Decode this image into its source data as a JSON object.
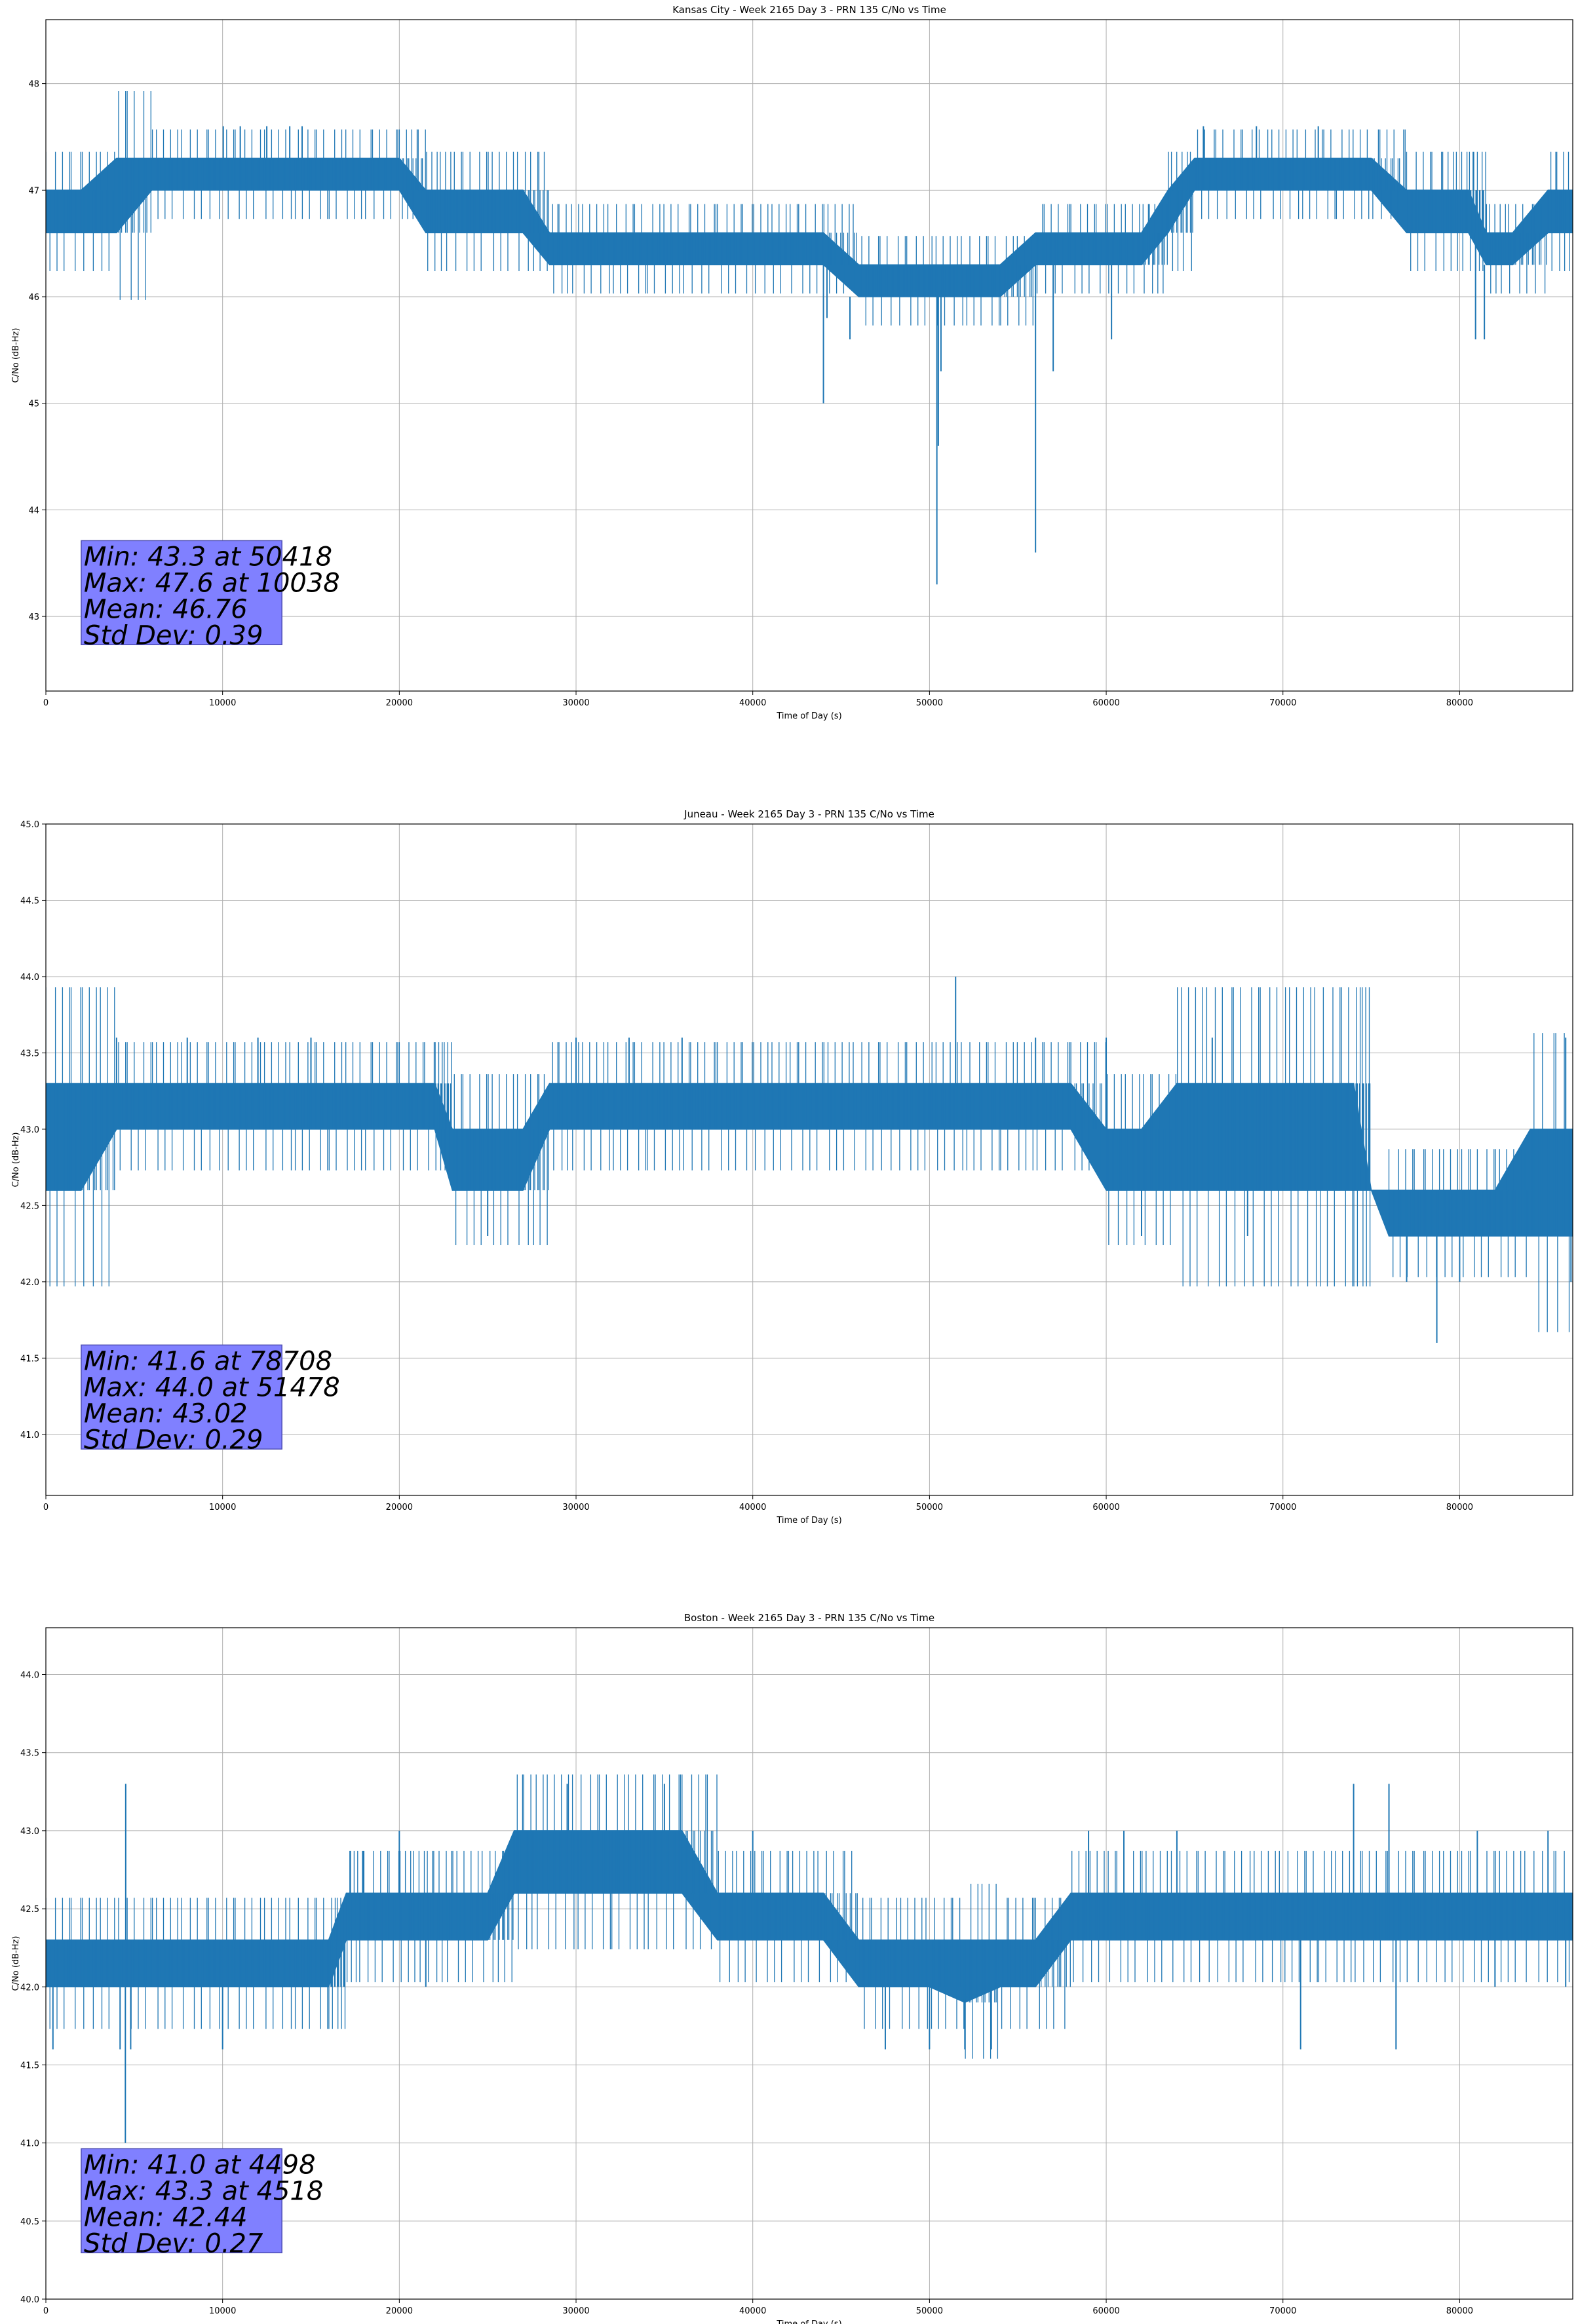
{
  "figure": {
    "colors": {
      "series": "#1f77b4",
      "grid": "#b0b0b0",
      "statbox_fill": "#8080ff",
      "statbox_edge": "#4d4db3"
    }
  },
  "chart_data": [
    {
      "type": "line",
      "title": "Kansas City - Week 2165 Day 3 - PRN 135 C/No vs Time",
      "xlabel": "Time of Day (s)",
      "ylabel": "C/No (dB-Hz)",
      "xlim": [
        0,
        86400
      ],
      "ylim": [
        42.3,
        48.6
      ],
      "xticks": [
        0,
        10000,
        20000,
        30000,
        40000,
        50000,
        60000,
        70000,
        80000
      ],
      "yticks": [
        43,
        44,
        45,
        46,
        47,
        48
      ],
      "ytick_labels": [
        "43",
        "44",
        "45",
        "46",
        "47",
        "48"
      ],
      "grid": true,
      "stats": [
        "Min: 43.3 at 50418",
        "Max: 47.6 at 10038",
        "Mean: 46.76",
        "Std Dev: 0.39"
      ],
      "series": [
        {
          "x": [
            0,
            2000,
            4000,
            6000,
            8000,
            10000,
            12000,
            14000,
            16000,
            18000,
            20000,
            21500,
            23000,
            25000,
            27000,
            28500,
            30000,
            32000,
            34000,
            36000,
            38000,
            40000,
            42000,
            44000,
            46000,
            48000,
            50000,
            52000,
            54000,
            56000,
            58000,
            60000,
            62000,
            63500,
            65000,
            67000,
            69000,
            71000,
            73000,
            75000,
            77000,
            79000,
            80500,
            81500,
            83000,
            85000,
            86400
          ],
          "y_low": [
            46.6,
            46.6,
            46.6,
            47.0,
            47.0,
            47.0,
            47.0,
            47.0,
            47.0,
            47.0,
            47.0,
            46.6,
            46.6,
            46.6,
            46.6,
            46.3,
            46.3,
            46.3,
            46.3,
            46.3,
            46.3,
            46.3,
            46.3,
            46.3,
            46.0,
            46.0,
            46.0,
            46.0,
            46.0,
            46.3,
            46.3,
            46.3,
            46.3,
            46.6,
            47.0,
            47.0,
            47.0,
            47.0,
            47.0,
            47.0,
            46.6,
            46.6,
            46.6,
            46.3,
            46.3,
            46.6,
            46.6
          ],
          "y_high": [
            47.0,
            47.0,
            47.3,
            47.3,
            47.3,
            47.3,
            47.3,
            47.3,
            47.3,
            47.3,
            47.3,
            47.0,
            47.0,
            47.0,
            47.0,
            46.6,
            46.6,
            46.6,
            46.6,
            46.6,
            46.6,
            46.6,
            46.6,
            46.6,
            46.3,
            46.3,
            46.3,
            46.3,
            46.3,
            46.6,
            46.6,
            46.6,
            46.6,
            47.0,
            47.3,
            47.3,
            47.3,
            47.3,
            47.3,
            47.3,
            47.0,
            47.0,
            47.0,
            46.6,
            46.6,
            47.0,
            47.0
          ],
          "spikes_up": [
            [
              10038,
              47.6
            ],
            [
              11000,
              47.6
            ],
            [
              12500,
              47.6
            ],
            [
              13800,
              47.6
            ],
            [
              14500,
              47.6
            ],
            [
              65500,
              47.6
            ],
            [
              68500,
              47.6
            ],
            [
              72000,
              47.6
            ]
          ],
          "spikes_down": [
            [
              44000,
              45.0
            ],
            [
              44200,
              45.8
            ],
            [
              45500,
              45.6
            ],
            [
              50418,
              43.3
            ],
            [
              50500,
              44.6
            ],
            [
              50650,
              45.3
            ],
            [
              56000,
              43.6
            ],
            [
              57000,
              45.3
            ],
            [
              60300,
              45.6
            ],
            [
              80900,
              45.6
            ],
            [
              81400,
              45.6
            ]
          ]
        }
      ]
    },
    {
      "type": "line",
      "title": "Juneau - Week 2165 Day 3 - PRN 135 C/No vs Time",
      "xlabel": "Time of Day (s)",
      "ylabel": "C/No (dB-Hz)",
      "xlim": [
        0,
        86400
      ],
      "ylim": [
        40.6,
        45.0
      ],
      "xticks": [
        0,
        10000,
        20000,
        30000,
        40000,
        50000,
        60000,
        70000,
        80000
      ],
      "yticks": [
        41.0,
        41.5,
        42.0,
        42.5,
        43.0,
        43.5,
        44.0,
        44.5,
        45.0
      ],
      "ytick_labels": [
        "41.0",
        "41.5",
        "42.0",
        "42.5",
        "43.0",
        "43.5",
        "44.0",
        "44.5",
        "45.0"
      ],
      "grid": true,
      "stats": [
        "Min: 41.6 at 78708",
        "Max: 44.0 at 51478",
        "Mean: 43.02",
        "Std Dev: 0.29"
      ],
      "series": [
        {
          "x": [
            0,
            2000,
            4000,
            6000,
            8000,
            10000,
            12000,
            14000,
            16000,
            18000,
            20000,
            22000,
            23000,
            25000,
            27000,
            28500,
            30000,
            32000,
            34000,
            36000,
            38000,
            40000,
            42000,
            44000,
            46000,
            48000,
            50000,
            52000,
            54000,
            56000,
            58000,
            60000,
            62000,
            64000,
            66000,
            68000,
            70000,
            72000,
            74000,
            75000,
            76000,
            78000,
            80000,
            82000,
            84000,
            86400
          ],
          "y_low": [
            42.6,
            42.6,
            43.0,
            43.0,
            43.0,
            43.0,
            43.0,
            43.0,
            43.0,
            43.0,
            43.0,
            43.0,
            42.6,
            42.6,
            42.6,
            43.0,
            43.0,
            43.0,
            43.0,
            43.0,
            43.0,
            43.0,
            43.0,
            43.0,
            43.0,
            43.0,
            43.0,
            43.0,
            43.0,
            43.0,
            43.0,
            42.6,
            42.6,
            42.6,
            42.6,
            42.6,
            42.6,
            42.6,
            42.6,
            42.6,
            42.3,
            42.3,
            42.3,
            42.3,
            42.3,
            42.3
          ],
          "y_high": [
            43.3,
            43.3,
            43.3,
            43.3,
            43.3,
            43.3,
            43.3,
            43.3,
            43.3,
            43.3,
            43.3,
            43.3,
            43.0,
            43.0,
            43.0,
            43.3,
            43.3,
            43.3,
            43.3,
            43.3,
            43.3,
            43.3,
            43.3,
            43.3,
            43.3,
            43.3,
            43.3,
            43.3,
            43.3,
            43.3,
            43.3,
            43.0,
            43.0,
            43.3,
            43.3,
            43.3,
            43.3,
            43.3,
            43.3,
            42.6,
            42.6,
            42.6,
            42.6,
            42.6,
            43.0,
            43.0
          ],
          "spikes_up": [
            [
              4000,
              43.6
            ],
            [
              8000,
              43.6
            ],
            [
              12000,
              43.6
            ],
            [
              15000,
              43.6
            ],
            [
              30000,
              43.6
            ],
            [
              33000,
              43.6
            ],
            [
              36000,
              43.6
            ],
            [
              51478,
              44.0
            ],
            [
              56000,
              43.6
            ],
            [
              60000,
              43.6
            ],
            [
              66000,
              43.6
            ],
            [
              86000,
              43.6
            ]
          ],
          "spikes_down": [
            [
              25000,
              42.3
            ],
            [
              62000,
              42.3
            ],
            [
              68000,
              42.3
            ],
            [
              77000,
              42.0
            ],
            [
              78708,
              41.6
            ],
            [
              80000,
              42.0
            ],
            [
              86300,
              42.0
            ]
          ]
        }
      ]
    },
    {
      "type": "line",
      "title": "Boston - Week 2165 Day 3 - PRN 135 C/No vs Time",
      "xlabel": "Time of Day (s)",
      "ylabel": "C/No (dB-Hz)",
      "xlim": [
        0,
        86400
      ],
      "ylim": [
        40.0,
        44.3
      ],
      "xticks": [
        0,
        10000,
        20000,
        30000,
        40000,
        50000,
        60000,
        70000,
        80000
      ],
      "yticks": [
        40.0,
        40.5,
        41.0,
        41.5,
        42.0,
        42.5,
        43.0,
        43.5,
        44.0
      ],
      "ytick_labels": [
        "40.0",
        "40.5",
        "41.0",
        "41.5",
        "42.0",
        "42.5",
        "43.0",
        "43.5",
        "44.0"
      ],
      "grid": true,
      "stats": [
        "Min: 41.0 at 4498",
        "Max: 43.3 at 4518",
        "Mean: 42.44",
        "Std Dev: 0.27"
      ],
      "series": [
        {
          "x": [
            0,
            2000,
            4000,
            6000,
            8000,
            10000,
            12000,
            14000,
            16000,
            17000,
            18000,
            20000,
            21500,
            23000,
            25000,
            26500,
            28000,
            30000,
            32000,
            34000,
            36000,
            38000,
            40000,
            42000,
            44000,
            46000,
            48000,
            50000,
            52000,
            54000,
            56000,
            58000,
            60000,
            62000,
            64000,
            66000,
            68000,
            70000,
            72000,
            74000,
            76000,
            78000,
            80000,
            82000,
            84000,
            86400
          ],
          "y_low": [
            42.0,
            42.0,
            42.0,
            42.0,
            42.0,
            42.0,
            42.0,
            42.0,
            42.0,
            42.3,
            42.3,
            42.3,
            42.3,
            42.3,
            42.3,
            42.6,
            42.6,
            42.6,
            42.6,
            42.6,
            42.6,
            42.3,
            42.3,
            42.3,
            42.3,
            42.0,
            42.0,
            42.0,
            41.9,
            42.0,
            42.0,
            42.3,
            42.3,
            42.3,
            42.3,
            42.3,
            42.3,
            42.3,
            42.3,
            42.3,
            42.3,
            42.3,
            42.3,
            42.3,
            42.3,
            42.3
          ],
          "y_high": [
            42.3,
            42.3,
            42.3,
            42.3,
            42.3,
            42.3,
            42.3,
            42.3,
            42.3,
            42.6,
            42.6,
            42.6,
            42.6,
            42.6,
            42.6,
            43.0,
            43.0,
            43.0,
            43.0,
            43.0,
            43.0,
            42.6,
            42.6,
            42.6,
            42.6,
            42.3,
            42.3,
            42.3,
            42.3,
            42.3,
            42.3,
            42.6,
            42.6,
            42.6,
            42.6,
            42.6,
            42.6,
            42.6,
            42.6,
            42.6,
            42.6,
            42.6,
            42.6,
            42.6,
            42.6,
            42.6
          ],
          "spikes_up": [
            [
              4518,
              43.3
            ],
            [
              20000,
              43.0
            ],
            [
              29500,
              43.3
            ],
            [
              35000,
              43.3
            ],
            [
              40000,
              43.0
            ],
            [
              59000,
              43.0
            ],
            [
              61000,
              43.0
            ],
            [
              64000,
              43.0
            ],
            [
              74000,
              43.3
            ],
            [
              76000,
              43.3
            ],
            [
              81000,
              43.0
            ],
            [
              85000,
              43.0
            ]
          ],
          "spikes_down": [
            [
              400,
              41.6
            ],
            [
              4498,
              41.0
            ],
            [
              4200,
              41.6
            ],
            [
              4800,
              41.6
            ],
            [
              10000,
              41.6
            ],
            [
              21500,
              42.0
            ],
            [
              47500,
              41.6
            ],
            [
              50000,
              41.6
            ],
            [
              52000,
              41.6
            ],
            [
              53500,
              41.6
            ],
            [
              71000,
              41.6
            ],
            [
              76400,
              41.6
            ],
            [
              82000,
              42.0
            ],
            [
              86000,
              42.0
            ]
          ]
        }
      ]
    }
  ]
}
